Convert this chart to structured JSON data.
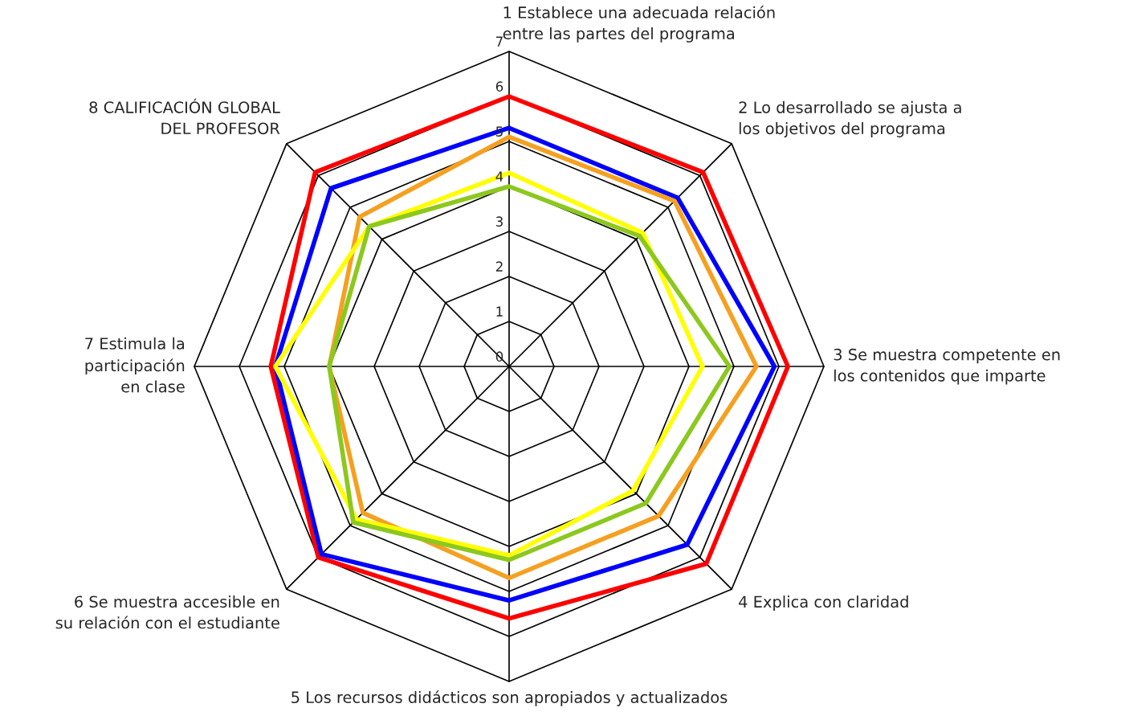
{
  "chart_data": {
    "type": "radar",
    "categories": [
      "1 Establece una adecuada relación\nentre las partes del programa",
      "2 Lo desarrollado se ajusta a\nlos objetivos del programa",
      "3 Se muestra competente en\nlos contenidos que imparte",
      "4 Explica con claridad",
      "5 Los recursos didácticos son apropiados y actualizados",
      "6 Se muestra accesible en\nsu relación con el estudiante",
      "7 Estimula la\nparticipación\nen clase",
      "8 CALIFICACIÓN GLOBAL\nDEL PROFESOR"
    ],
    "series": [
      {
        "color": "#ff0000",
        "values": [
          6.0,
          6.1,
          6.2,
          6.2,
          5.6,
          6.0,
          5.3,
          6.1
        ]
      },
      {
        "color": "#0000ff",
        "values": [
          5.3,
          5.3,
          5.9,
          5.6,
          5.2,
          5.9,
          5.2,
          5.6
        ]
      },
      {
        "color": "#f5a020",
        "values": [
          5.1,
          5.2,
          5.5,
          4.7,
          4.7,
          4.6,
          4.0,
          4.7
        ]
      },
      {
        "color": "#ffff00",
        "values": [
          4.3,
          4.2,
          4.3,
          3.9,
          4.2,
          4.8,
          5.2,
          4.4
        ]
      },
      {
        "color": "#8cc81e",
        "values": [
          4.0,
          4.1,
          4.9,
          4.3,
          4.3,
          4.9,
          4.0,
          4.4
        ]
      }
    ],
    "ylim": [
      0,
      7
    ],
    "yticks": [
      0,
      1,
      2,
      3,
      4,
      5,
      6,
      7
    ],
    "grid": true
  }
}
